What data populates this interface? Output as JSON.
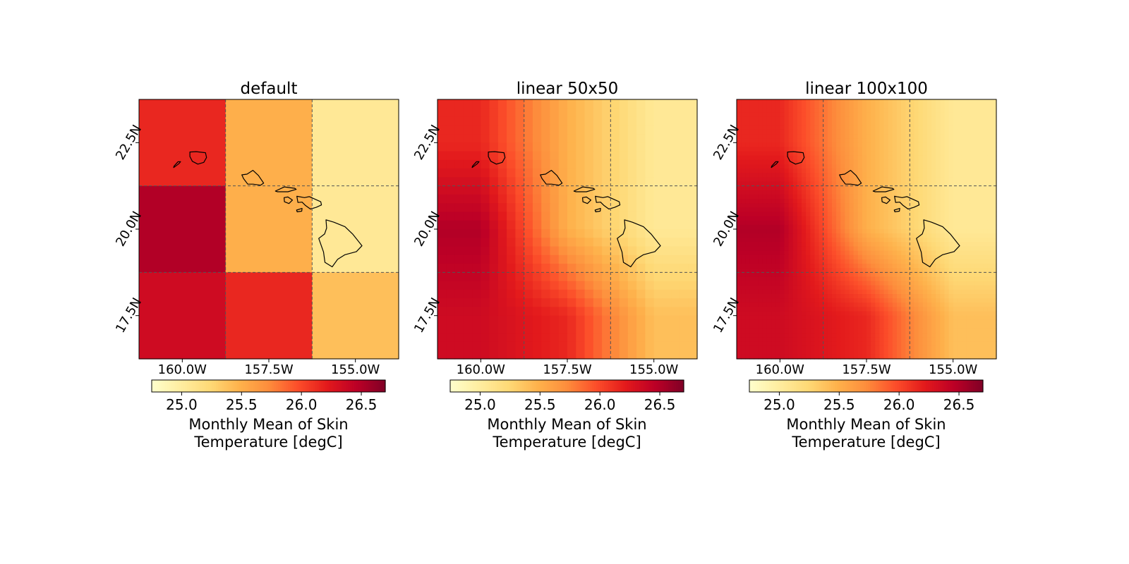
{
  "chart_data": [
    {
      "type": "heatmap",
      "title": "default",
      "xticks": [
        -160.0,
        -157.5,
        -155.0
      ],
      "xtick_labels": [
        "160.0W",
        "157.5W",
        "155.0W"
      ],
      "yticks": [
        17.5,
        20.0,
        22.5
      ],
      "ytick_labels": [
        "17.5N",
        "20.0N",
        "22.5N"
      ],
      "xlim": [
        -161.25,
        -153.75
      ],
      "ylim": [
        16.25,
        23.75
      ],
      "grid": true,
      "resolution": 3,
      "corners": {
        "top_left": 26.15,
        "top_mid": 25.5,
        "top_right": 25.05,
        "mid_left": 26.5,
        "mid_mid": 25.5,
        "mid_right": 25.05,
        "bot_left": 26.35,
        "bot_mid": 26.15,
        "bot_right": 25.4
      },
      "grid_values": [
        [
          26.15,
          25.5,
          25.05
        ],
        [
          26.5,
          25.5,
          25.05
        ],
        [
          26.35,
          26.15,
          25.4
        ]
      ],
      "colorbar": {
        "ticks": [
          25.0,
          25.5,
          26.0,
          26.5
        ],
        "tick_labels": [
          "25.0",
          "25.5",
          "26.0",
          "26.5"
        ],
        "vmin": 24.75,
        "vmax": 26.7,
        "label_line1": "Monthly Mean of Skin",
        "label_line2": "Temperature [degC]"
      }
    },
    {
      "type": "heatmap",
      "title": "linear 50x50",
      "xticks": [
        -160.0,
        -157.5,
        -155.0
      ],
      "xtick_labels": [
        "160.0W",
        "157.5W",
        "155.0W"
      ],
      "yticks": [
        17.5,
        20.0,
        22.5
      ],
      "ytick_labels": [
        "17.5N",
        "20.0N",
        "22.5N"
      ],
      "xlim": [
        -161.25,
        -153.75
      ],
      "ylim": [
        16.25,
        23.75
      ],
      "grid": true,
      "resolution": 30,
      "grid_values": [
        [
          26.15,
          25.5,
          25.05
        ],
        [
          26.5,
          25.5,
          25.05
        ],
        [
          26.35,
          26.15,
          25.4
        ]
      ],
      "colorbar": {
        "ticks": [
          25.0,
          25.5,
          26.0,
          26.5
        ],
        "tick_labels": [
          "25.0",
          "25.5",
          "26.0",
          "26.5"
        ],
        "vmin": 24.75,
        "vmax": 26.7,
        "label_line1": "Monthly Mean of Skin",
        "label_line2": "Temperature [degC]"
      }
    },
    {
      "type": "heatmap",
      "title": "linear 100x100",
      "xticks": [
        -160.0,
        -157.5,
        -155.0
      ],
      "xtick_labels": [
        "160.0W",
        "157.5W",
        "155.0W"
      ],
      "yticks": [
        17.5,
        20.0,
        22.5
      ],
      "ytick_labels": [
        "17.5N",
        "20.0N",
        "22.5N"
      ],
      "xlim": [
        -161.25,
        -153.75
      ],
      "ylim": [
        16.25,
        23.75
      ],
      "grid": true,
      "resolution": 60,
      "grid_values": [
        [
          26.15,
          25.5,
          25.05
        ],
        [
          26.5,
          25.5,
          25.05
        ],
        [
          26.35,
          26.15,
          25.4
        ]
      ],
      "colorbar": {
        "ticks": [
          25.0,
          25.5,
          26.0,
          26.5
        ],
        "tick_labels": [
          "25.0",
          "25.5",
          "26.0",
          "26.5"
        ],
        "vmin": 24.75,
        "vmax": 26.7,
        "label_line1": "Monthly Mean of Skin",
        "label_line2": "Temperature [degC]"
      }
    }
  ],
  "colormap": [
    "#ffffcc",
    "#ffeda0",
    "#fed976",
    "#feb24c",
    "#fd8d3c",
    "#fc4e2a",
    "#e31a1c",
    "#bd0026",
    "#800026"
  ],
  "coastline_color": "#000000",
  "gridline_color": "#555555"
}
